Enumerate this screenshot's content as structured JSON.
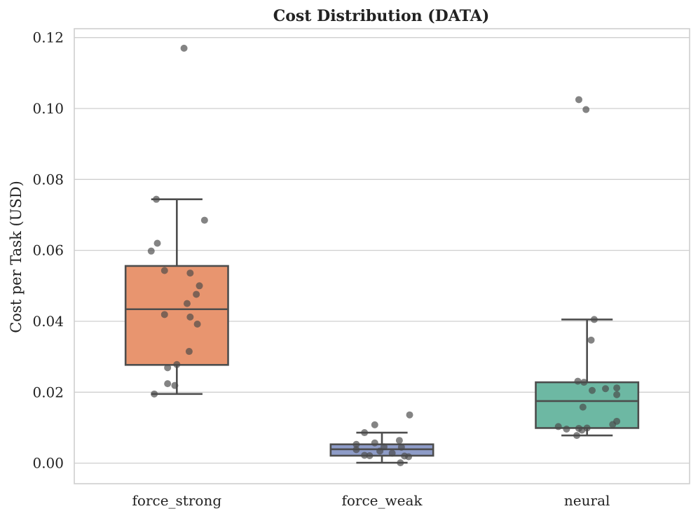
{
  "chart_data": {
    "type": "box",
    "title": "Cost Distribution (DATA)",
    "xlabel": "",
    "ylabel": "Cost per Task (USD)",
    "ylim": [
      -0.0058,
      0.1225
    ],
    "yticks": [
      0.0,
      0.02,
      0.04,
      0.06,
      0.08,
      0.1,
      0.12
    ],
    "ytick_labels": [
      "0.00",
      "0.02",
      "0.04",
      "0.06",
      "0.08",
      "0.10",
      "0.12"
    ],
    "grid": true,
    "categories": [
      "force_strong",
      "force_weak",
      "neural"
    ],
    "series": [
      {
        "name": "force_strong",
        "color": "#E8956F",
        "stats": {
          "whislo": 0.0195,
          "q1": 0.0277,
          "med": 0.0434,
          "q3": 0.0556,
          "whishi": 0.0744
        },
        "outliers": [
          0.117
        ],
        "points": [
          {
            "v": 0.117,
            "j": 0.07
          },
          {
            "v": 0.0744,
            "j": -0.2
          },
          {
            "v": 0.0685,
            "j": 0.27
          },
          {
            "v": 0.062,
            "j": -0.19
          },
          {
            "v": 0.0598,
            "j": -0.25
          },
          {
            "v": 0.0543,
            "j": -0.12
          },
          {
            "v": 0.0536,
            "j": 0.13
          },
          {
            "v": 0.05,
            "j": 0.22
          },
          {
            "v": 0.0476,
            "j": 0.19
          },
          {
            "v": 0.045,
            "j": 0.1
          },
          {
            "v": 0.0419,
            "j": -0.12
          },
          {
            "v": 0.0412,
            "j": 0.13
          },
          {
            "v": 0.0392,
            "j": 0.2
          },
          {
            "v": 0.0315,
            "j": 0.12
          },
          {
            "v": 0.0278,
            "j": 0.0
          },
          {
            "v": 0.0269,
            "j": -0.09
          },
          {
            "v": 0.0224,
            "j": -0.09
          },
          {
            "v": 0.0219,
            "j": -0.02
          },
          {
            "v": 0.0195,
            "j": -0.22
          }
        ]
      },
      {
        "name": "force_weak",
        "color": "#8E9CC8",
        "stats": {
          "whislo": 0.0001,
          "q1": 0.0021,
          "med": 0.0039,
          "q3": 0.0053,
          "whishi": 0.0086
        },
        "outliers": [
          0.0108,
          0.0136
        ],
        "points": [
          {
            "v": 0.0136,
            "j": 0.27
          },
          {
            "v": 0.0108,
            "j": -0.07
          },
          {
            "v": 0.0086,
            "j": -0.17
          },
          {
            "v": 0.0064,
            "j": 0.17
          },
          {
            "v": 0.0057,
            "j": -0.07
          },
          {
            "v": 0.0053,
            "j": -0.25
          },
          {
            "v": 0.0046,
            "j": 0.02
          },
          {
            "v": 0.0045,
            "j": 0.19
          },
          {
            "v": 0.0038,
            "j": -0.25
          },
          {
            "v": 0.0034,
            "j": -0.02
          },
          {
            "v": 0.0028,
            "j": 0.1
          },
          {
            "v": 0.0022,
            "j": -0.17
          },
          {
            "v": 0.0021,
            "j": -0.12
          },
          {
            "v": 0.002,
            "j": 0.22
          },
          {
            "v": 0.0018,
            "j": 0.26
          },
          {
            "v": 0.0001,
            "j": 0.18
          }
        ]
      },
      {
        "name": "neural",
        "color": "#6DB8A3",
        "stats": {
          "whislo": 0.0078,
          "q1": 0.0099,
          "med": 0.0175,
          "q3": 0.0228,
          "whishi": 0.0405
        },
        "outliers": [
          0.1025,
          0.0997
        ],
        "points": [
          {
            "v": 0.1025,
            "j": -0.08
          },
          {
            "v": 0.0997,
            "j": -0.01
          },
          {
            "v": 0.0405,
            "j": 0.07
          },
          {
            "v": 0.0347,
            "j": 0.04
          },
          {
            "v": 0.0231,
            "j": -0.09
          },
          {
            "v": 0.0228,
            "j": -0.03
          },
          {
            "v": 0.0212,
            "j": 0.29
          },
          {
            "v": 0.021,
            "j": 0.18
          },
          {
            "v": 0.0205,
            "j": 0.05
          },
          {
            "v": 0.0193,
            "j": 0.29
          },
          {
            "v": 0.0158,
            "j": -0.04
          },
          {
            "v": 0.0118,
            "j": 0.29
          },
          {
            "v": 0.0109,
            "j": 0.25
          },
          {
            "v": 0.0103,
            "j": -0.28
          },
          {
            "v": 0.0099,
            "j": 0.0
          },
          {
            "v": 0.0098,
            "j": -0.08
          },
          {
            "v": 0.0096,
            "j": -0.2
          },
          {
            "v": 0.0093,
            "j": -0.05
          },
          {
            "v": 0.0078,
            "j": -0.1
          }
        ]
      }
    ]
  }
}
